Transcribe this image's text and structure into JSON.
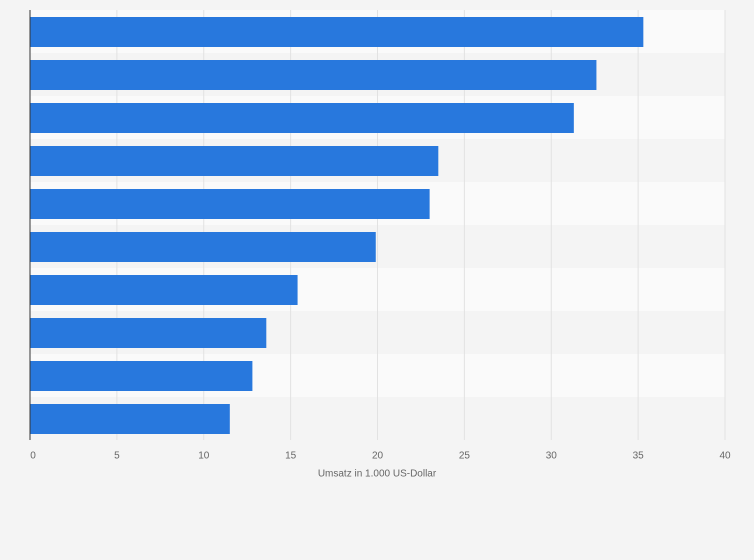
{
  "chart_data": {
    "type": "bar",
    "orientation": "horizontal",
    "x_label": "Umsatz in 1.000 US-Dollar",
    "categories": [
      null,
      null,
      null,
      null,
      null,
      null,
      null,
      null,
      null,
      null
    ],
    "values": [
      35.3,
      32.6,
      31.3,
      23.5,
      23.0,
      19.9,
      15.4,
      13.6,
      12.8,
      11.5
    ],
    "color": "#2878dd",
    "xlim": [
      0,
      40
    ],
    "xticks": [
      0,
      5,
      10,
      15,
      20,
      25,
      30,
      35,
      40
    ],
    "grid": true
  }
}
